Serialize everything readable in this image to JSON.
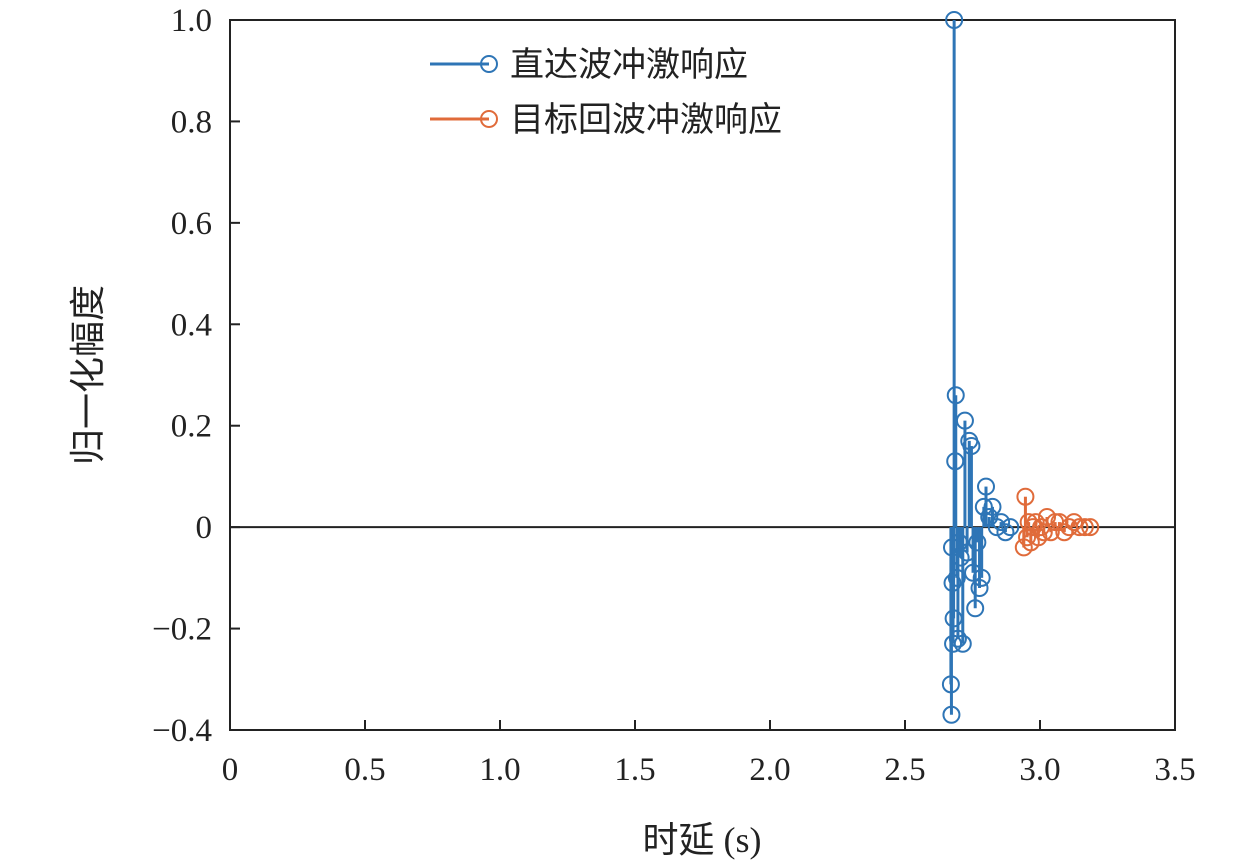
{
  "chart_data": {
    "type": "stem",
    "xlabel": "时延 (s)",
    "ylabel": "归一化幅度",
    "xlim": [
      0,
      3.5
    ],
    "ylim": [
      -0.4,
      1.0
    ],
    "xticks": [
      0,
      0.5,
      1.0,
      1.5,
      2.0,
      2.5,
      3.0,
      3.5
    ],
    "xtick_labels": [
      "0",
      "0.5",
      "1.0",
      "1.5",
      "2.0",
      "2.5",
      "3.0",
      "3.5"
    ],
    "yticks": [
      -0.4,
      -0.2,
      0,
      0.2,
      0.4,
      0.6,
      0.8,
      1.0
    ],
    "ytick_labels": [
      "−0.4",
      "−0.2",
      "0",
      "0.2",
      "0.4",
      "0.6",
      "0.8",
      "1.0"
    ],
    "grid": false,
    "legend_position": "top-center",
    "series": [
      {
        "name": "直达波冲激响应",
        "color": "#2e75b6",
        "marker": "circle",
        "points": [
          {
            "x": 2.67,
            "y": -0.31
          },
          {
            "x": 2.672,
            "y": -0.37
          },
          {
            "x": 2.674,
            "y": -0.04
          },
          {
            "x": 2.676,
            "y": -0.11
          },
          {
            "x": 2.678,
            "y": -0.23
          },
          {
            "x": 2.68,
            "y": -0.18
          },
          {
            "x": 2.682,
            "y": 1.0
          },
          {
            "x": 2.686,
            "y": 0.13
          },
          {
            "x": 2.688,
            "y": 0.26
          },
          {
            "x": 2.692,
            "y": -0.1
          },
          {
            "x": 2.696,
            "y": -0.22
          },
          {
            "x": 2.7,
            "y": -0.03
          },
          {
            "x": 2.706,
            "y": -0.06
          },
          {
            "x": 2.714,
            "y": -0.23
          },
          {
            "x": 2.722,
            "y": 0.21
          },
          {
            "x": 2.73,
            "y": -0.05
          },
          {
            "x": 2.738,
            "y": 0.17
          },
          {
            "x": 2.746,
            "y": 0.16
          },
          {
            "x": 2.752,
            "y": -0.09
          },
          {
            "x": 2.76,
            "y": -0.16
          },
          {
            "x": 2.768,
            "y": -0.03
          },
          {
            "x": 2.776,
            "y": -0.12
          },
          {
            "x": 2.784,
            "y": -0.1
          },
          {
            "x": 2.792,
            "y": 0.04
          },
          {
            "x": 2.8,
            "y": 0.08
          },
          {
            "x": 2.812,
            "y": 0.02
          },
          {
            "x": 2.824,
            "y": 0.04
          },
          {
            "x": 2.84,
            "y": 0.0
          },
          {
            "x": 2.856,
            "y": 0.01
          },
          {
            "x": 2.872,
            "y": -0.01
          },
          {
            "x": 2.89,
            "y": 0.0
          }
        ]
      },
      {
        "name": "目标回波冲激响应",
        "color": "#e06b3a",
        "marker": "circle",
        "points": [
          {
            "x": 2.94,
            "y": -0.04
          },
          {
            "x": 2.946,
            "y": 0.06
          },
          {
            "x": 2.952,
            "y": -0.02
          },
          {
            "x": 2.958,
            "y": 0.01
          },
          {
            "x": 2.966,
            "y": -0.03
          },
          {
            "x": 2.974,
            "y": 0.0
          },
          {
            "x": 2.984,
            "y": 0.01
          },
          {
            "x": 2.994,
            "y": -0.02
          },
          {
            "x": 3.004,
            "y": 0.0
          },
          {
            "x": 3.014,
            "y": -0.01
          },
          {
            "x": 3.026,
            "y": 0.02
          },
          {
            "x": 3.04,
            "y": -0.01
          },
          {
            "x": 3.056,
            "y": 0.01
          },
          {
            "x": 3.072,
            "y": 0.01
          },
          {
            "x": 3.09,
            "y": -0.01
          },
          {
            "x": 3.108,
            "y": 0.0
          },
          {
            "x": 3.126,
            "y": 0.01
          },
          {
            "x": 3.146,
            "y": 0.0
          },
          {
            "x": 3.166,
            "y": 0.0
          },
          {
            "x": 3.186,
            "y": 0.0
          }
        ]
      }
    ]
  }
}
